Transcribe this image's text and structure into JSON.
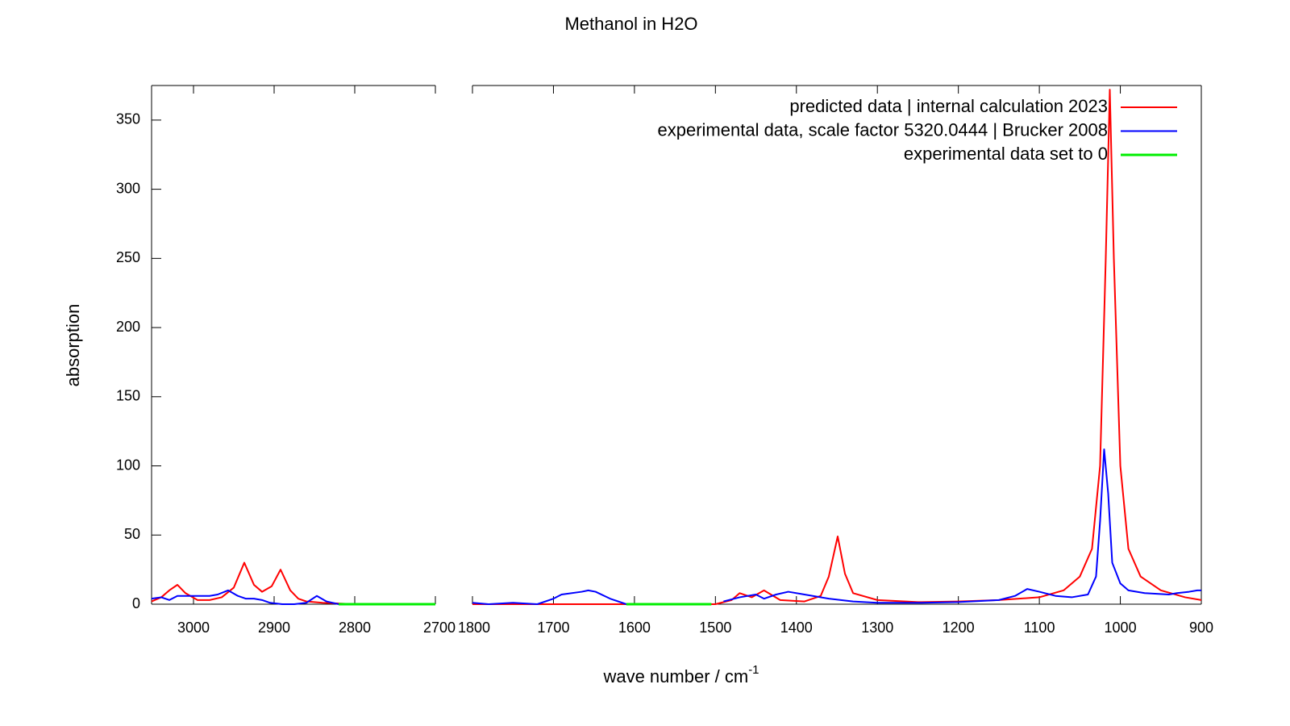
{
  "chart_data": {
    "type": "line",
    "title": "Methanol in H2O",
    "x_label": "wave number / cm",
    "x_label_superscript": "-1",
    "y_label": "absorption",
    "ylim": [
      0,
      375
    ],
    "yticks": [
      0,
      50,
      100,
      150,
      200,
      250,
      300,
      350
    ],
    "legend": "top-right",
    "series": [
      {
        "name": "predicted data | internal calculation 2023",
        "color": "#ff0000",
        "width": 2
      },
      {
        "name": "experimental data, scale factor 5320.0444 | Brucker 2008",
        "color": "#0000ff",
        "width": 2
      },
      {
        "name": "experimental data set to 0",
        "color": "#00ee00",
        "width": 3
      }
    ],
    "panels": [
      {
        "xlim": [
          3052,
          2700
        ],
        "xticks": [
          3000,
          2900,
          2800,
          2700
        ],
        "series": [
          {
            "x": [
              3052,
              3040,
              3030,
              3020,
              3010,
              2995,
              2980,
              2965,
              2950,
              2937,
              2925,
              2915,
              2903,
              2892,
              2880,
              2870,
              2860,
              2840,
              2820,
              2800,
              2750,
              2700
            ],
            "values": [
              2,
              5,
              10,
              14,
              8,
              3,
              3,
              5,
              12,
              30,
              14,
              9,
              13,
              25,
              10,
              4,
              2,
              1,
              0.5,
              0,
              0,
              0
            ]
          },
          {
            "x": [
              3052,
              3040,
              3030,
              3020,
              3010,
              3000,
              2980,
              2970,
              2957,
              2945,
              2935,
              2925,
              2915,
              2905,
              2890,
              2875,
              2860,
              2847,
              2835,
              2820,
              2800,
              2750,
              2700
            ],
            "values": [
              4,
              5,
              3,
              6,
              6,
              6,
              6,
              7,
              10,
              6,
              4,
              4,
              3,
              1,
              0,
              0,
              1,
              6,
              2,
              0,
              null,
              null,
              null
            ]
          },
          {
            "x": [
              3052,
              2820,
              2800,
              2750,
              2700
            ],
            "values": [
              null,
              0,
              0,
              0,
              0
            ]
          }
        ]
      },
      {
        "xlim": [
          1800,
          900
        ],
        "xticks": [
          1800,
          1700,
          1600,
          1500,
          1400,
          1300,
          1200,
          1100,
          1000,
          900
        ],
        "series": [
          {
            "x": [
              1800,
              1700,
              1600,
              1500,
              1480,
              1470,
              1455,
              1440,
              1420,
              1390,
              1370,
              1360,
              1349,
              1340,
              1330,
              1300,
              1250,
              1200,
              1150,
              1100,
              1070,
              1050,
              1035,
              1025,
              1018,
              1013,
              1008,
              1000,
              990,
              975,
              950,
              920,
              900
            ],
            "values": [
              0,
              0,
              0,
              0,
              3,
              8,
              5,
              10,
              3,
              2,
              6,
              20,
              49,
              22,
              8,
              3,
              1.5,
              2,
              3,
              5,
              10,
              20,
              40,
              100,
              250,
              372,
              250,
              100,
              40,
              20,
              10,
              5,
              3
            ]
          },
          {
            "x": [
              1800,
              1780,
              1750,
              1720,
              1700,
              1690,
              1665,
              1657,
              1648,
              1630,
              1610,
              1505,
              1490,
              1470,
              1450,
              1440,
              1425,
              1410,
              1390,
              1360,
              1330,
              1300,
              1250,
              1200,
              1150,
              1130,
              1115,
              1100,
              1080,
              1060,
              1040,
              1030,
              1025,
              1020,
              1015,
              1010,
              1000,
              990,
              970,
              940,
              930,
              915,
              905,
              900
            ],
            "values": [
              1,
              0,
              1,
              0,
              4,
              7,
              9,
              10,
              9,
              4,
              0,
              null,
              2,
              5,
              7,
              4,
              7,
              9,
              7,
              4,
              2,
              1,
              1,
              1.5,
              3,
              6,
              11,
              9,
              6,
              5,
              7,
              20,
              60,
              112,
              80,
              30,
              15,
              10,
              8,
              7,
              8,
              9,
              10,
              10
            ]
          },
          {
            "x": [
              1800,
              1610,
              1505,
              1490,
              900
            ],
            "values": [
              null,
              0,
              0,
              null,
              null
            ]
          }
        ]
      }
    ]
  }
}
